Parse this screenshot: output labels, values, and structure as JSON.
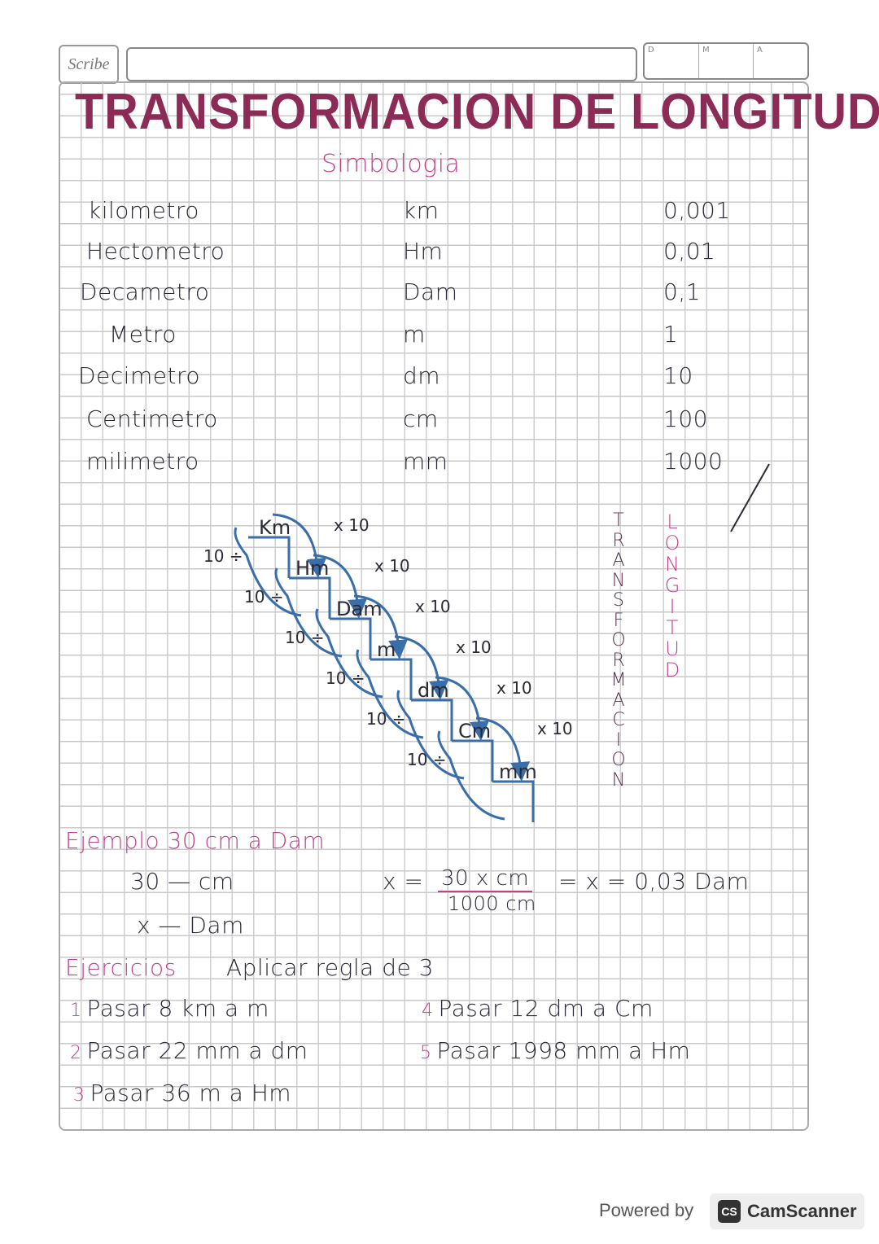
{
  "header": {
    "logo_text": "Scribe",
    "date_labels": [
      "D",
      "M",
      "A"
    ]
  },
  "title": "TRANSFORMACION DE LONGITUD",
  "subtitle": "Simbologia",
  "units_table": [
    {
      "name": "kilometro",
      "symbol": "km",
      "factor": "0,001"
    },
    {
      "name": "Hectometro",
      "symbol": "Hm",
      "factor": "0,01"
    },
    {
      "name": "Decametro",
      "symbol": "Dam",
      "factor": "0,1"
    },
    {
      "name": "Metro",
      "symbol": "m",
      "factor": "1"
    },
    {
      "name": "Decimetro",
      "symbol": "dm",
      "factor": "10"
    },
    {
      "name": "Centimetro",
      "symbol": "cm",
      "factor": "100"
    },
    {
      "name": "milimetro",
      "symbol": "mm",
      "factor": "1000"
    }
  ],
  "staircase": {
    "steps": [
      "Km",
      "Hm",
      "Dam",
      "m",
      "dm",
      "Cm",
      "mm"
    ],
    "down_label": "x 10",
    "up_label": "10 ÷",
    "color": "#3a6ea8"
  },
  "vertical_words": {
    "transformacion": "TRANSFORMACION",
    "longitud": "LONGITUD"
  },
  "example": {
    "heading": "Ejemplo 30 cm a Dam",
    "line1": "30 — cm",
    "line2": "x — Dam",
    "formula_lhs": "x =",
    "numerator": "30 x cm",
    "denominator": "1000 cm",
    "result": "= x = 0,03 Dam"
  },
  "exercises": {
    "heading": "Ejercicios",
    "instruction": "Aplicar regla de 3",
    "items": [
      {
        "num": "1",
        "text": "Pasar 8 km a m"
      },
      {
        "num": "2",
        "text": "Pasar 22 mm a dm"
      },
      {
        "num": "3",
        "text": "Pasar 36 m a Hm"
      },
      {
        "num": "4",
        "text": "Pasar 12 dm a Cm"
      },
      {
        "num": "5",
        "text": "Pasar 1998 mm a Hm"
      }
    ]
  },
  "footer": {
    "powered": "Powered by",
    "brand_logo": "CS",
    "brand": "CamScanner"
  },
  "colors": {
    "title": "#8c2b55",
    "accent": "#c2428d",
    "ink": "#2b2b38",
    "diagram": "#3a6ea8"
  }
}
